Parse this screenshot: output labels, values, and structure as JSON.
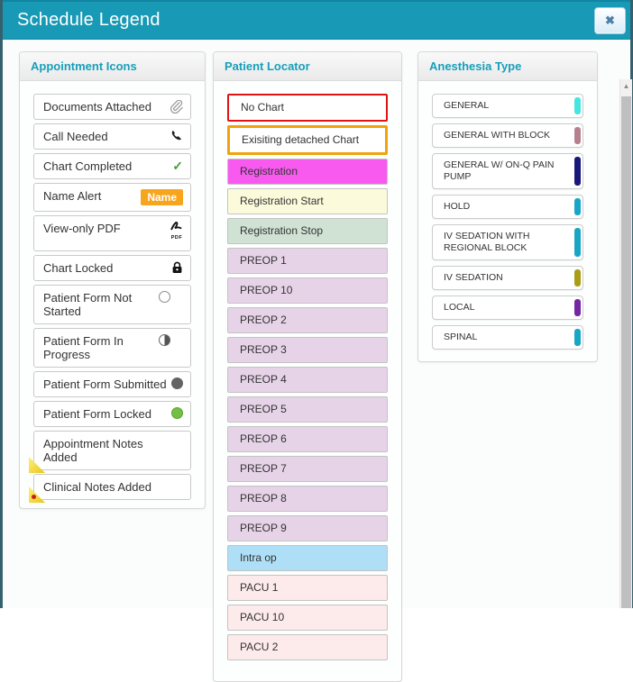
{
  "modal": {
    "title": "Schedule Legend",
    "close_icon": "✖"
  },
  "colors": {
    "header_bg": "#1899b5",
    "accent_text": "#179fba",
    "name_badge": "#f8a51e",
    "note_corner": "#e9c41c",
    "no_chart_border": "#e01414",
    "detached_chart_border": "#f0a30a"
  },
  "panels": {
    "appointment_icons": {
      "title": "Appointment Icons",
      "items": [
        {
          "label": "Documents Attached",
          "icon": "paperclip"
        },
        {
          "label": "Call Needed",
          "icon": "phone"
        },
        {
          "label": "Chart Completed",
          "icon": "check"
        },
        {
          "label": "Name Alert",
          "icon": "name-badge",
          "badge": "Name"
        },
        {
          "label": "View-only PDF",
          "icon": "pdf",
          "icon_caption": "PDF"
        },
        {
          "label": "Chart Locked",
          "icon": "lock"
        },
        {
          "label": "Patient Form Not Started",
          "icon": "circle-empty",
          "wrap": true
        },
        {
          "label": "Patient Form In Progress",
          "icon": "circle-half",
          "wrap": true
        },
        {
          "label": "Patient Form Submitted",
          "icon": "circle-filled"
        },
        {
          "label": "Patient Form Locked",
          "icon": "circle-green"
        },
        {
          "label": "Appointment Notes Added",
          "icon": "note-corner",
          "wrap": true
        },
        {
          "label": "Clinical Notes Added",
          "icon": "note-corner-dot"
        }
      ]
    },
    "patient_locator": {
      "title": "Patient Locator",
      "items": [
        {
          "label": "No Chart",
          "bg": "#ffffff",
          "border": "2px solid #e01414"
        },
        {
          "label": "Exisiting detached Chart",
          "bg": "#ffffff",
          "border": "3px solid #f0a30a"
        },
        {
          "label": "Registration",
          "bg": "#f85af0"
        },
        {
          "label": "Registration Start",
          "bg": "#fbfbdc"
        },
        {
          "label": "Registration Stop",
          "bg": "#d0e2d4"
        },
        {
          "label": "PREOP 1",
          "bg": "#e7d3e8"
        },
        {
          "label": "PREOP 10",
          "bg": "#e7d3e8"
        },
        {
          "label": "PREOP 2",
          "bg": "#e7d3e8"
        },
        {
          "label": "PREOP 3",
          "bg": "#e7d3e8"
        },
        {
          "label": "PREOP 4",
          "bg": "#e7d3e8"
        },
        {
          "label": "PREOP 5",
          "bg": "#e7d3e8"
        },
        {
          "label": "PREOP 6",
          "bg": "#e7d3e8"
        },
        {
          "label": "PREOP 7",
          "bg": "#e7d3e8"
        },
        {
          "label": "PREOP 8",
          "bg": "#e7d3e8"
        },
        {
          "label": "PREOP 9",
          "bg": "#e7d3e8"
        },
        {
          "label": "Intra op",
          "bg": "#aedff7"
        },
        {
          "label": "PACU 1",
          "bg": "#fdeaea"
        },
        {
          "label": "PACU 10",
          "bg": "#fdeaea"
        },
        {
          "label": "PACU 2",
          "bg": "#fdeaea"
        }
      ]
    },
    "anesthesia_type": {
      "title": "Anesthesia Type",
      "items": [
        {
          "label": "GENERAL",
          "color": "#45e6e2"
        },
        {
          "label": "GENERAL WITH BLOCK",
          "color": "#b7808f"
        },
        {
          "label": "GENERAL W/ ON-Q PAIN PUMP",
          "color": "#181878"
        },
        {
          "label": "HOLD",
          "color": "#19a6c4"
        },
        {
          "label": "IV SEDATION WITH REGIONAL BLOCK",
          "color": "#19a6c4"
        },
        {
          "label": "IV SEDATION",
          "color": "#aa9c17"
        },
        {
          "label": "LOCAL",
          "color": "#7527a1"
        },
        {
          "label": "SPINAL",
          "color": "#19a6c4"
        }
      ]
    }
  },
  "scrollbar": {
    "up_arrow": "▲"
  }
}
